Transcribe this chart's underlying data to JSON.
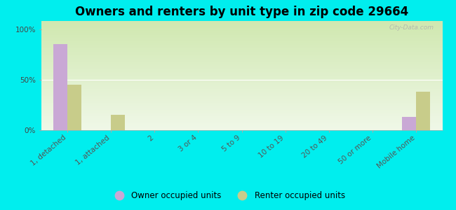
{
  "title": "Owners and renters by unit type in zip code 29664",
  "categories": [
    "1, detached",
    "1, attached",
    "2",
    "3 or 4",
    "5 to 9",
    "10 to 19",
    "20 to 49",
    "50 or more",
    "Mobile home"
  ],
  "owner_values": [
    85,
    0,
    0,
    0,
    0,
    0,
    0,
    0,
    13
  ],
  "renter_values": [
    45,
    15,
    0,
    0,
    0,
    0,
    0,
    0,
    38
  ],
  "owner_color": "#c9a8d5",
  "renter_color": "#c8cc8a",
  "background_color": "#00eeee",
  "grad_top": "#d0e8b0",
  "grad_bottom": "#f0f8e8",
  "ylabel_ticks": [
    "0%",
    "50%",
    "100%"
  ],
  "yticks": [
    0,
    50,
    100
  ],
  "ylim": [
    0,
    108
  ],
  "bar_width": 0.32,
  "title_fontsize": 12,
  "tick_fontsize": 7.5,
  "legend_fontsize": 8.5,
  "watermark": "City-Data.com"
}
